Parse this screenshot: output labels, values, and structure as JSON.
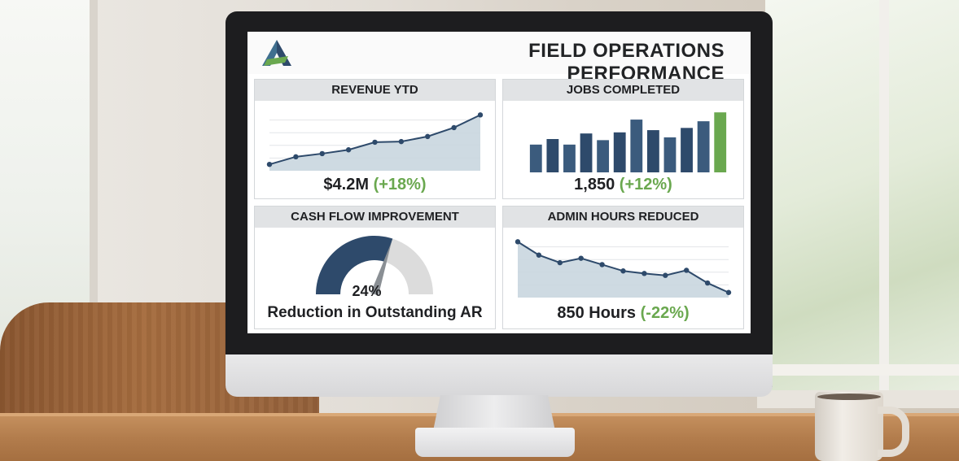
{
  "dashboard": {
    "title": "FIELD OPERATIONS PERFORMANCE",
    "logo_icon": "stylized-a-logo",
    "colors": {
      "navy": "#2e4a6b",
      "green": "#6aa84f",
      "fill": "#c9d6df",
      "gauge_track": "#dcdcdc"
    }
  },
  "panels": {
    "revenue": {
      "title": "REVENUE YTD",
      "value": "$4.2M",
      "delta": "(+18%)"
    },
    "jobs": {
      "title": "JOBS COMPLETED",
      "value": "1,850",
      "delta": "(+12%)"
    },
    "cash": {
      "title": "CASH FLOW IMPROVEMENT",
      "value": "24%",
      "caption": "Reduction in Outstanding AR"
    },
    "admin": {
      "title": "ADMIN HOURS REDUCED",
      "value": "850 Hours",
      "delta": "(-22%)"
    }
  },
  "chart_data": [
    {
      "type": "area",
      "title": "REVENUE YTD",
      "x": [
        1,
        2,
        3,
        4,
        5,
        6,
        7,
        8,
        9
      ],
      "values": [
        10,
        22,
        27,
        33,
        45,
        46,
        54,
        68,
        88
      ],
      "ylim": [
        0,
        100
      ],
      "grid": true
    },
    {
      "type": "bar",
      "title": "JOBS COMPLETED",
      "categories": [
        "1",
        "2",
        "3",
        "4",
        "5",
        "6",
        "7",
        "8",
        "9",
        "10",
        "11",
        "12"
      ],
      "values": [
        50,
        60,
        50,
        70,
        58,
        72,
        95,
        76,
        63,
        80,
        92,
        108
      ],
      "highlight_last": true,
      "ylim": [
        0,
        120
      ]
    },
    {
      "type": "gauge",
      "title": "CASH FLOW IMPROVEMENT",
      "value": 24,
      "fill_fraction": 0.6
    },
    {
      "type": "area",
      "title": "ADMIN HOURS REDUCED",
      "x": [
        1,
        2,
        3,
        4,
        5,
        6,
        7,
        8,
        9,
        10,
        11
      ],
      "values": [
        88,
        67,
        55,
        62,
        52,
        42,
        38,
        35,
        43,
        23,
        8
      ],
      "ylim": [
        0,
        100
      ],
      "grid": true
    }
  ]
}
